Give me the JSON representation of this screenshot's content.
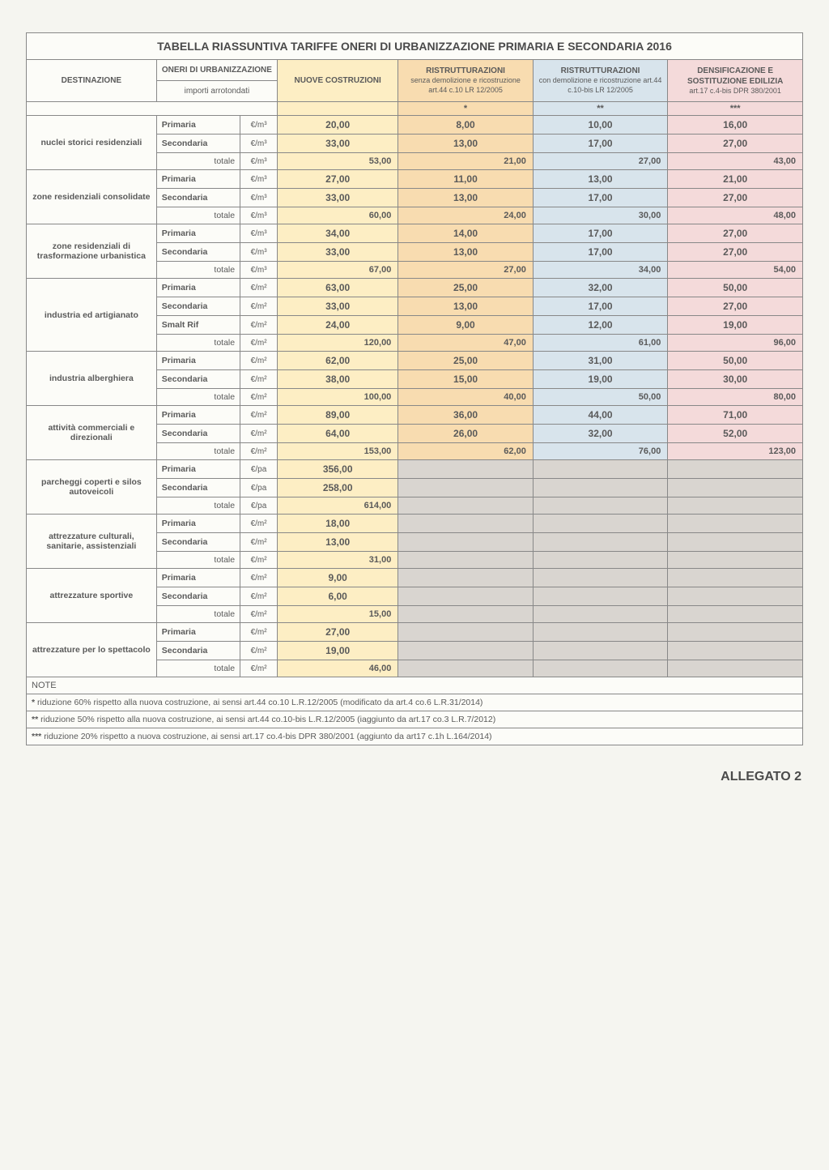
{
  "title": "TABELLA RIASSUNTIVA TARIFFE ONERI DI URBANIZZAZIONE PRIMARIA E SECONDARIA 2016",
  "headers": {
    "dest": "DESTINAZIONE",
    "oneri": "ONERI DI URBANIZZAZIONE",
    "importi": "importi arrotondati",
    "nuove": "NUOVE COSTRUZIONI",
    "ristr1_t": "RISTRUTTURAZIONI",
    "ristr1_s": "senza demolizione e ricostruzione art.44 c.10 LR 12/2005",
    "ristr2_t": "RISTRUTTURAZIONI",
    "ristr2_s": "con demolizione e ricostruzione art.44 c.10-bis LR 12/2005",
    "dens_t": "DENSIFICAZIONE E SOSTITUZIONE EDILIZIA",
    "dens_s": "art.17 c.4-bis DPR 380/2001",
    "star1": "*",
    "star2": "**",
    "star3": "***"
  },
  "units": {
    "m3": "€/m³",
    "m2": "€/m²",
    "pa": "€/pa"
  },
  "labels": {
    "prim": "Primaria",
    "sec": "Secondaria",
    "smalt": "Smalt Rif",
    "tot": "totale"
  },
  "groups": [
    {
      "dest": "nuclei storici residenziali",
      "unit": "m3",
      "rows": [
        {
          "k": "prim",
          "v": [
            "20,00",
            "8,00",
            "10,00",
            "16,00"
          ]
        },
        {
          "k": "sec",
          "v": [
            "33,00",
            "13,00",
            "17,00",
            "27,00"
          ]
        },
        {
          "k": "tot",
          "v": [
            "53,00",
            "21,00",
            "27,00",
            "43,00"
          ]
        }
      ]
    },
    {
      "dest": "zone residenziali consolidate",
      "unit": "m3",
      "rows": [
        {
          "k": "prim",
          "v": [
            "27,00",
            "11,00",
            "13,00",
            "21,00"
          ]
        },
        {
          "k": "sec",
          "v": [
            "33,00",
            "13,00",
            "17,00",
            "27,00"
          ]
        },
        {
          "k": "tot",
          "v": [
            "60,00",
            "24,00",
            "30,00",
            "48,00"
          ]
        }
      ]
    },
    {
      "dest": "zone residenziali di trasformazione urbanistica",
      "unit": "m3",
      "rows": [
        {
          "k": "prim",
          "v": [
            "34,00",
            "14,00",
            "17,00",
            "27,00"
          ]
        },
        {
          "k": "sec",
          "v": [
            "33,00",
            "13,00",
            "17,00",
            "27,00"
          ]
        },
        {
          "k": "tot",
          "v": [
            "67,00",
            "27,00",
            "34,00",
            "54,00"
          ]
        }
      ]
    },
    {
      "dest": "industria ed artigianato",
      "unit": "m2",
      "rows": [
        {
          "k": "prim",
          "v": [
            "63,00",
            "25,00",
            "32,00",
            "50,00"
          ]
        },
        {
          "k": "sec",
          "v": [
            "33,00",
            "13,00",
            "17,00",
            "27,00"
          ]
        },
        {
          "k": "smalt",
          "v": [
            "24,00",
            "9,00",
            "12,00",
            "19,00"
          ]
        },
        {
          "k": "tot",
          "v": [
            "120,00",
            "47,00",
            "61,00",
            "96,00"
          ]
        }
      ]
    },
    {
      "dest": "industria alberghiera",
      "unit": "m2",
      "rows": [
        {
          "k": "prim",
          "v": [
            "62,00",
            "25,00",
            "31,00",
            "50,00"
          ]
        },
        {
          "k": "sec",
          "v": [
            "38,00",
            "15,00",
            "19,00",
            "30,00"
          ]
        },
        {
          "k": "tot",
          "v": [
            "100,00",
            "40,00",
            "50,00",
            "80,00"
          ]
        }
      ]
    },
    {
      "dest": "attività commerciali e direzionali",
      "unit": "m2",
      "rows": [
        {
          "k": "prim",
          "v": [
            "89,00",
            "36,00",
            "44,00",
            "71,00"
          ]
        },
        {
          "k": "sec",
          "v": [
            "64,00",
            "26,00",
            "32,00",
            "52,00"
          ]
        },
        {
          "k": "tot",
          "v": [
            "153,00",
            "62,00",
            "76,00",
            "123,00"
          ]
        }
      ]
    },
    {
      "dest": "parcheggi coperti e silos autoveicoli",
      "unit": "pa",
      "rows": [
        {
          "k": "prim",
          "v": [
            "356,00",
            "",
            "",
            ""
          ]
        },
        {
          "k": "sec",
          "v": [
            "258,00",
            "",
            "",
            ""
          ]
        },
        {
          "k": "tot",
          "v": [
            "614,00",
            "",
            "",
            ""
          ]
        }
      ]
    },
    {
      "dest": "attrezzature culturali, sanitarie, assistenziali",
      "unit": "m2",
      "rows": [
        {
          "k": "prim",
          "v": [
            "18,00",
            "",
            "",
            ""
          ]
        },
        {
          "k": "sec",
          "v": [
            "13,00",
            "",
            "",
            ""
          ]
        },
        {
          "k": "tot",
          "v": [
            "31,00",
            "",
            "",
            ""
          ]
        }
      ]
    },
    {
      "dest": "attrezzature sportive",
      "unit": "m2",
      "rows": [
        {
          "k": "prim",
          "v": [
            "9,00",
            "",
            "",
            ""
          ]
        },
        {
          "k": "sec",
          "v": [
            "6,00",
            "",
            "",
            ""
          ]
        },
        {
          "k": "tot",
          "v": [
            "15,00",
            "",
            "",
            ""
          ]
        }
      ]
    },
    {
      "dest": "attrezzature per lo spettacolo",
      "unit": "m2",
      "rows": [
        {
          "k": "prim",
          "v": [
            "27,00",
            "",
            "",
            ""
          ]
        },
        {
          "k": "sec",
          "v": [
            "19,00",
            "",
            "",
            ""
          ]
        },
        {
          "k": "tot",
          "v": [
            "46,00",
            "",
            "",
            ""
          ]
        }
      ]
    }
  ],
  "notes": {
    "header": "NOTE",
    "n1": "riduzione 60% rispetto alla nuova costruzione, ai sensi art.44 co.10 L.R.12/2005 (modificato da art.4 co.6 L.R.31/2014)",
    "n2": "riduzione 50% rispetto alla nuova costruzione, ai sensi art.44 co.10-bis L.R.12/2005 (iaggiunto da art.17 co.3 L.R.7/2012)",
    "n3": "riduzione 20% rispetto a nuova costruzione, ai sensi art.17 co.4-bis DPR 380/2001 (aggiunto da art17 c.1h L.164/2014)"
  },
  "allegato": "ALLEGATO 2",
  "col_colors": [
    "c-yellow",
    "c-orange",
    "c-blue",
    "c-pink"
  ],
  "empty_color": "c-gray"
}
